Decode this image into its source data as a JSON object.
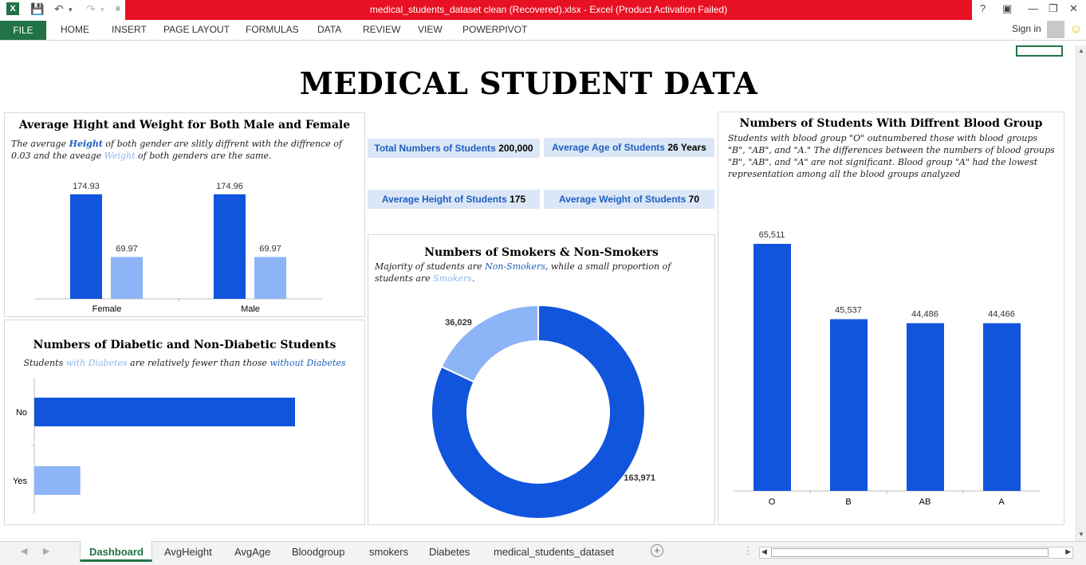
{
  "window": {
    "title": "medical_students_dataset clean (Recovered).xlsx -  Excel (Product Activation Failed)",
    "help": "?",
    "sign_in": "Sign in"
  },
  "ribbon": {
    "file": "FILE",
    "tabs": [
      "HOME",
      "INSERT",
      "PAGE LAYOUT",
      "FORMULAS",
      "DATA",
      "REVIEW",
      "VIEW",
      "POWERPIVOT"
    ]
  },
  "dashboard": {
    "title": "MEDICAL STUDENT DATA",
    "kpis": [
      {
        "label": "Total Numbers of Students",
        "value": "200,000"
      },
      {
        "label": "Average Age of Students",
        "value": "26 Years"
      },
      {
        "label": "Average Height of Students",
        "value": "175"
      },
      {
        "label": "Average Weight of Students",
        "value": "70"
      }
    ],
    "height_weight": {
      "title": "Average Hight and Weight for Both Male and Female",
      "desc_1": "The average ",
      "desc_height": "Height",
      "desc_2": " of both gender are slitly diffrent with the diffrence of 0.03 and the aveage ",
      "desc_weight": "Weight",
      "desc_3": " of both genders are the same."
    },
    "diabetes": {
      "title": "Numbers of Diabetic and Non-Diabetic Students",
      "desc_1": "Students ",
      "desc_with": "with Diabetes",
      "desc_2": " are relatively fewer than those ",
      "desc_without": "without Diabetes"
    },
    "smokers": {
      "title": "Numbers of Smokers & Non-Smokers",
      "desc_1": "Majority of students are ",
      "desc_non": "Non-Smokers",
      "desc_2": ", while a small proportion of students are ",
      "desc_smokers": "Smokers",
      "desc_3": "."
    },
    "blood": {
      "title": "Numbers of Students With Diffrent Blood Group",
      "desc": "Students with blood group \"O\" outnumbered those with blood groups \"B\", \"AB\", and \"A.\" The differences between the numbers of blood groups \"B\", \"AB\", and \"A\" are not significant. Blood group \"A\" had the lowest representation among all the blood groups analyzed"
    }
  },
  "chart_data": [
    {
      "type": "bar",
      "categories": [
        "Female",
        "Male"
      ],
      "series": [
        {
          "values": [
            174.93,
            174.96
          ],
          "labels": [
            "174.93",
            "174.96"
          ],
          "color": "#1155dd"
        },
        {
          "values": [
            69.97,
            69.97
          ],
          "labels": [
            "69.97",
            "69.97"
          ],
          "color": "#8db4f7"
        }
      ],
      "ylim": [
        0,
        180
      ]
    },
    {
      "type": "bar",
      "orientation": "horizontal",
      "categories": [
        "No",
        "Yes"
      ],
      "values": [
        170000,
        30000
      ],
      "colors": [
        "#1155dd",
        "#8db4f7"
      ]
    },
    {
      "type": "pie",
      "donut": true,
      "slices": [
        {
          "value": 163971,
          "label": "163,971",
          "color": "#1155dd"
        },
        {
          "value": 36029,
          "label": "36,029",
          "color": "#8db4f7"
        }
      ]
    },
    {
      "type": "bar",
      "categories": [
        "O",
        "B",
        "AB",
        "A"
      ],
      "values": [
        65511,
        45537,
        44486,
        44466
      ],
      "labels": [
        "65,511",
        "45,537",
        "44,486",
        "44,466"
      ],
      "color": "#1155dd",
      "ylim": [
        0,
        70000
      ]
    }
  ],
  "sheet_tabs": [
    "Dashboard",
    "AvgHeight",
    "AvgAge",
    "Bloodgroup",
    "smokers",
    "Diabetes",
    "medical_students_dataset"
  ]
}
